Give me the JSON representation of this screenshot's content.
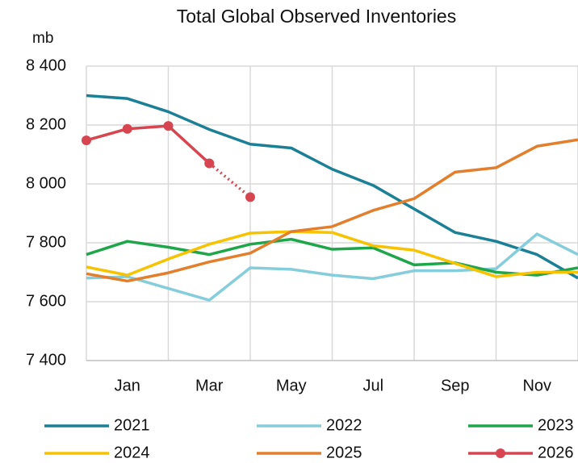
{
  "chart_data": {
    "type": "line",
    "title": "Total Global Observed Inventories",
    "y_label": "mb",
    "categories": [
      null,
      "Jan",
      null,
      "Mar",
      null,
      "May",
      null,
      "Jul",
      null,
      "Sep",
      null,
      "Nov",
      null
    ],
    "ylim": [
      7400,
      8400
    ],
    "yticks": [
      {
        "value": 7400,
        "label": "7 400"
      },
      {
        "value": 7600,
        "label": "7 600"
      },
      {
        "value": 7800,
        "label": "7 800"
      },
      {
        "value": 8000,
        "label": "8 000"
      },
      {
        "value": 8200,
        "label": "8 200"
      },
      {
        "value": 8400,
        "label": "8 400"
      }
    ],
    "grid": true,
    "legend": "bottom",
    "series": [
      {
        "name": "2021",
        "color": "#1b7f96",
        "values": [
          8300,
          8290,
          8245,
          8185,
          8135,
          8122,
          8050,
          7995,
          7915,
          7835,
          7805,
          7760,
          7680
        ]
      },
      {
        "name": "2022",
        "color": "#86cddc",
        "values": [
          7680,
          7685,
          7645,
          7605,
          7715,
          7710,
          7690,
          7678,
          7705,
          7705,
          7712,
          7830,
          7760
        ]
      },
      {
        "name": "2023",
        "color": "#1fa64b",
        "values": [
          7760,
          7805,
          7785,
          7760,
          7795,
          7812,
          7778,
          7783,
          7725,
          7732,
          7700,
          7690,
          7715
        ]
      },
      {
        "name": "2024",
        "color": "#f7c200",
        "values": [
          7718,
          7690,
          7745,
          7795,
          7833,
          7838,
          7835,
          7790,
          7775,
          7730,
          7685,
          7700,
          7700
        ]
      },
      {
        "name": "2025",
        "color": "#e37f2c",
        "values": [
          7695,
          7670,
          7698,
          7735,
          7765,
          7838,
          7855,
          7910,
          7950,
          8040,
          8055,
          8128,
          8150
        ]
      },
      {
        "name": "2026",
        "color": "#d64550",
        "marker": true,
        "dash_last_segment": true,
        "values": [
          8148,
          8187,
          8197,
          8070,
          7955,
          null,
          null,
          null,
          null,
          null,
          null,
          null,
          null
        ]
      }
    ]
  }
}
